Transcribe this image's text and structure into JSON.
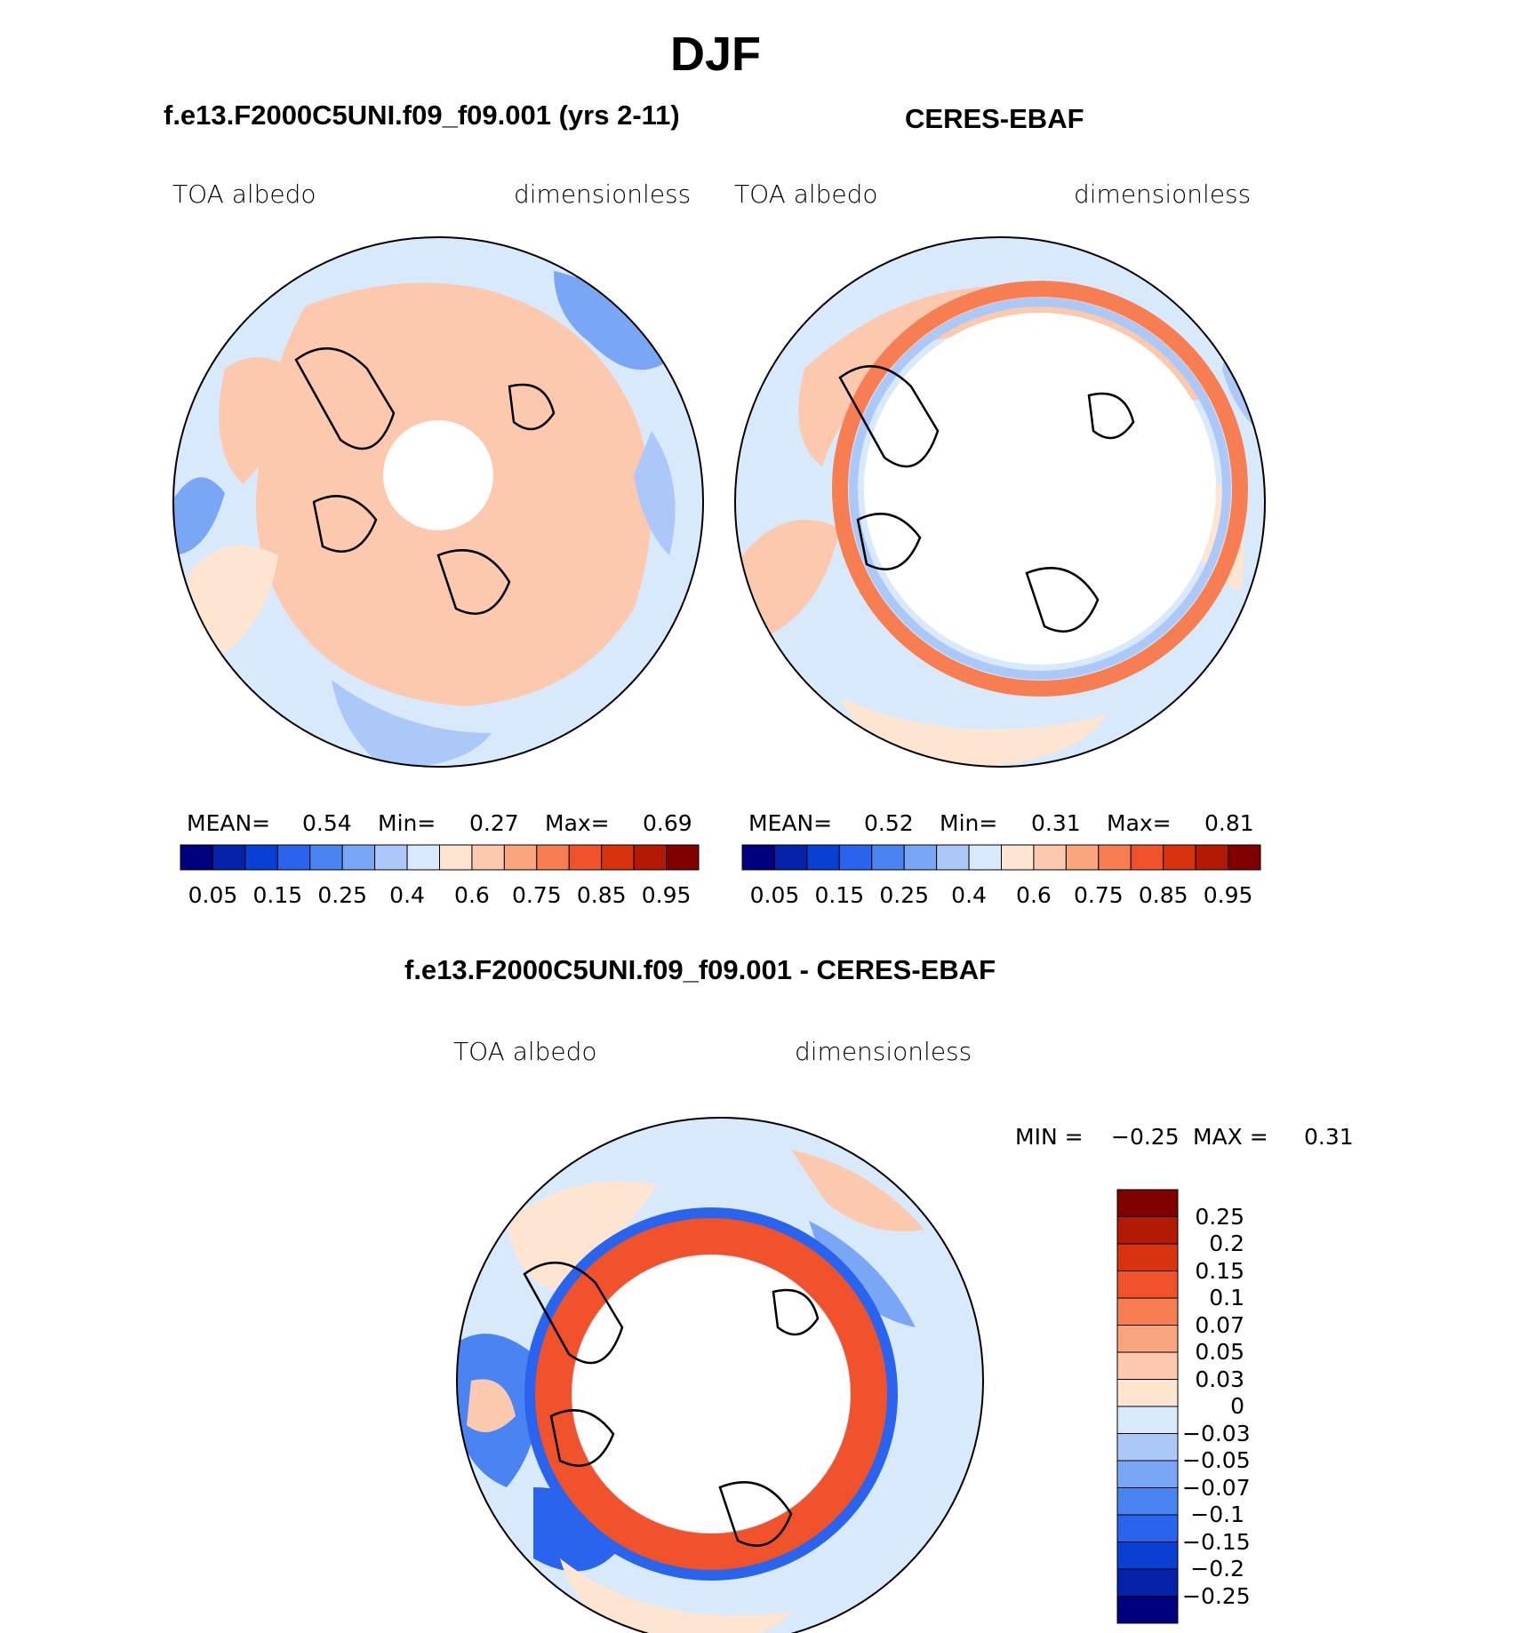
{
  "title": "DJF",
  "panels": [
    {
      "subtitle": "f.e13.F2000C5UNI.f09_f09.001 (yrs 2-11)",
      "variable": "TOA albedo",
      "units": "dimensionless",
      "mean_label": "MEAN=",
      "mean": "0.54",
      "min_label": "Min=",
      "min": "0.27",
      "max_label": "Max=",
      "max": "0.69",
      "colorbar_ticks": [
        "0.05",
        "0.15",
        "0.25",
        "0.4",
        "0.6",
        "0.75",
        "0.85",
        "0.95"
      ]
    },
    {
      "subtitle": "CERES-EBAF",
      "variable": "TOA albedo",
      "units": "dimensionless",
      "mean_label": "MEAN=",
      "mean": "0.52",
      "min_label": "Min=",
      "min": "0.31",
      "max_label": "Max=",
      "max": "0.81",
      "colorbar_ticks": [
        "0.05",
        "0.15",
        "0.25",
        "0.4",
        "0.6",
        "0.75",
        "0.85",
        "0.95"
      ]
    }
  ],
  "diff_panel": {
    "subtitle": "f.e13.F2000C5UNI.f09_f09.001 - CERES-EBAF",
    "variable": "TOA albedo",
    "units": "dimensionless",
    "min_label": "MIN =",
    "min": "−0.25",
    "max_label": "MAX =",
    "max": "0.31",
    "colorbar_ticks": [
      "0.25",
      "0.2",
      "0.15",
      "0.1",
      "0.07",
      "0.05",
      "0.03",
      "0",
      "−0.03",
      "−0.05",
      "−0.07",
      "−0.1",
      "−0.15",
      "−0.2",
      "−0.25"
    ]
  },
  "colors": {
    "seq_palette": [
      "#00007f",
      "#0421a8",
      "#0a3fd4",
      "#2a63ee",
      "#4a84f3",
      "#7aa6f6",
      "#abc8f8",
      "#d8e9fc",
      "#fde5d2",
      "#fcc8ae",
      "#f9a47e",
      "#f77d52",
      "#f0532c",
      "#d8330f",
      "#b31a06",
      "#800000"
    ],
    "div_palette": [
      "#00007f",
      "#0421a8",
      "#0a3fd4",
      "#2a63ee",
      "#4a84f3",
      "#7aa6f6",
      "#abc8f8",
      "#d8e9fc",
      "#fde5d2",
      "#fcc8ae",
      "#f9a47e",
      "#f77d52",
      "#f0532c",
      "#d8330f",
      "#b31a06",
      "#800000"
    ],
    "map_light_blue": "#d8e9fc",
    "map_peach": "#fcc8ae",
    "map_blue": "#7aa6f6",
    "map_red": "#f0532c"
  }
}
